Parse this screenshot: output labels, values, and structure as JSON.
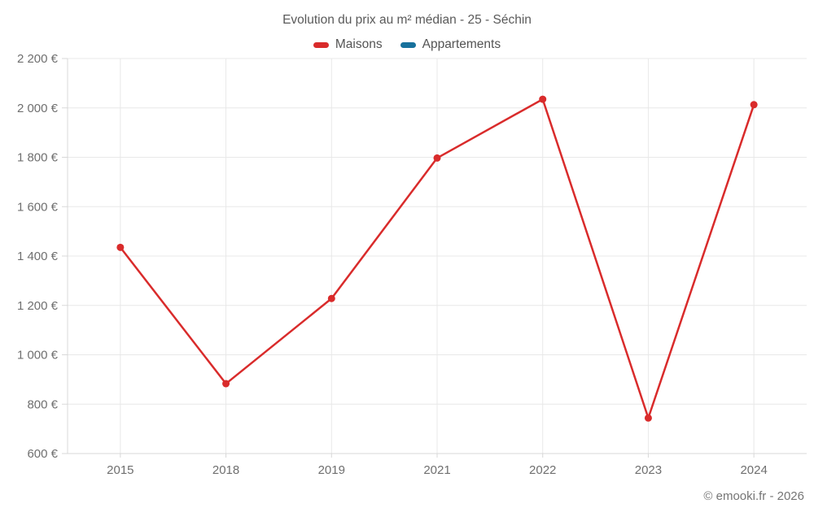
{
  "title": "Evolution du prix au m² médian - 25 - Séchin",
  "footer": "© emooki.fr - 2026",
  "legend": {
    "items": [
      {
        "label": "Maisons",
        "color": "#d92b2b"
      },
      {
        "label": "Appartements",
        "color": "#17719c"
      }
    ]
  },
  "chart_data": {
    "type": "line",
    "title": "Evolution du prix au m² médian - 25 - Séchin",
    "categories": [
      "2015",
      "2018",
      "2019",
      "2021",
      "2022",
      "2023",
      "2024"
    ],
    "series": [
      {
        "name": "Maisons",
        "color": "#d92b2b",
        "values": [
          1435,
          883,
          1228,
          1797,
          2035,
          744,
          2013
        ]
      },
      {
        "name": "Appartements",
        "color": "#17719c",
        "values": []
      }
    ],
    "xlabel": "",
    "ylabel": "",
    "ylim": [
      600,
      2200
    ],
    "y_tick_step": 200,
    "y_tick_labels": [
      "600 €",
      "800 €",
      "1 000 €",
      "1 200 €",
      "1 400 €",
      "1 600 €",
      "1 800 €",
      "2 000 €",
      "2 200 €"
    ],
    "grid": true,
    "legend_position": "top"
  },
  "colors": {
    "grid": "#e8e8e8",
    "axis": "#d8d8d8",
    "tick_text": "#6f6f6f",
    "title_text": "#5a5a5a"
  }
}
